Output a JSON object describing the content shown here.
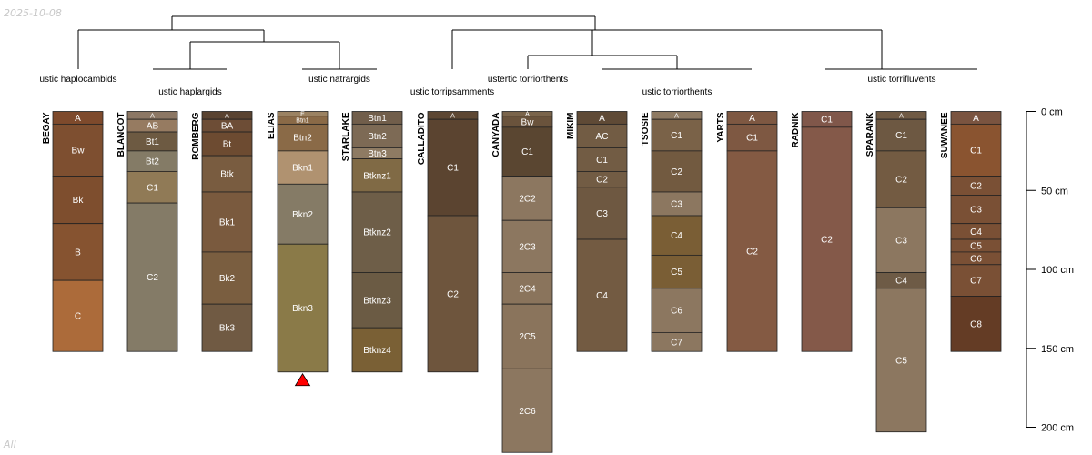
{
  "chart_data": {
    "type": "soil-profile-sketch",
    "stamp_date": "2025-10-08",
    "stamp_label": "All",
    "depth_unit": "cm",
    "depth_axis": {
      "range": [
        0,
        200
      ],
      "ticks": [
        0,
        50,
        100,
        150,
        200
      ]
    },
    "truncation_marker_profile": "ELIAS",
    "groups": [
      {
        "label": "ustic haplocambids"
      },
      {
        "label": "ustic haplargids"
      },
      {
        "label": "ustic natrargids"
      },
      {
        "label": "ustic torripsamments"
      },
      {
        "label": "ustertic torriorthents"
      },
      {
        "label": "ustic torriorthents"
      },
      {
        "label": "ustic torrifluvents"
      }
    ],
    "profiles": [
      {
        "name": "BEGAY",
        "horizons": [
          {
            "name": "A",
            "top": 0,
            "bottom": 8,
            "color": "#7e4a2c"
          },
          {
            "name": "Bw",
            "top": 8,
            "bottom": 41,
            "color": "#7e4f30"
          },
          {
            "name": "Bk",
            "top": 41,
            "bottom": 71,
            "color": "#7e4e2e"
          },
          {
            "name": "B",
            "top": 71,
            "bottom": 107,
            "color": "#865330"
          },
          {
            "name": "C",
            "top": 107,
            "bottom": 152,
            "color": "#ac6b3a"
          }
        ]
      },
      {
        "name": "BLANCOT",
        "horizons": [
          {
            "name": "A",
            "top": 0,
            "bottom": 5,
            "color": "#8c7764"
          },
          {
            "name": "AB",
            "top": 5,
            "bottom": 13,
            "color": "#967b61"
          },
          {
            "name": "Bt1",
            "top": 13,
            "bottom": 25,
            "color": "#6d5a42"
          },
          {
            "name": "Bt2",
            "top": 25,
            "bottom": 38,
            "color": "#847b66"
          },
          {
            "name": "C1",
            "top": 38,
            "bottom": 58,
            "color": "#907a56"
          },
          {
            "name": "C2",
            "top": 58,
            "bottom": 152,
            "color": "#847b67"
          }
        ]
      },
      {
        "name": "ROMBERG",
        "horizons": [
          {
            "name": "A",
            "top": 0,
            "bottom": 5,
            "color": "#5a4331"
          },
          {
            "name": "BA",
            "top": 5,
            "bottom": 13,
            "color": "#6d4d36"
          },
          {
            "name": "Bt",
            "top": 13,
            "bottom": 28,
            "color": "#6d4b31"
          },
          {
            "name": "Btk",
            "top": 28,
            "bottom": 51,
            "color": "#795c40"
          },
          {
            "name": "Bk1",
            "top": 51,
            "bottom": 89,
            "color": "#7a5a3e"
          },
          {
            "name": "Bk2",
            "top": 89,
            "bottom": 122,
            "color": "#7a5e40"
          },
          {
            "name": "Bk3",
            "top": 122,
            "bottom": 152,
            "color": "#705a43"
          }
        ]
      },
      {
        "name": "ELIAS",
        "horizons": [
          {
            "name": "E",
            "top": 0,
            "bottom": 3,
            "color": "#9b8262"
          },
          {
            "name": "Btn1",
            "top": 3,
            "bottom": 8,
            "color": "#8a6a47"
          },
          {
            "name": "Btn2",
            "top": 8,
            "bottom": 25,
            "color": "#8a6a47"
          },
          {
            "name": "Bkn1",
            "top": 25,
            "bottom": 46,
            "color": "#b09270"
          },
          {
            "name": "Bkn2",
            "top": 46,
            "bottom": 84,
            "color": "#857b66"
          },
          {
            "name": "Bkn3",
            "top": 84,
            "bottom": 165,
            "color": "#8a7a48"
          }
        ]
      },
      {
        "name": "STARLAKE",
        "horizons": [
          {
            "name": "Btn1",
            "top": 0,
            "bottom": 8,
            "color": "#715e4b"
          },
          {
            "name": "Btn2",
            "top": 8,
            "bottom": 23,
            "color": "#7d6a55"
          },
          {
            "name": "Btn3",
            "top": 23,
            "bottom": 30,
            "color": "#8e7b63"
          },
          {
            "name": "Btknz1",
            "top": 30,
            "bottom": 51,
            "color": "#806a45"
          },
          {
            "name": "Btknz2",
            "top": 51,
            "bottom": 102,
            "color": "#6e5e48"
          },
          {
            "name": "Btknz3",
            "top": 102,
            "bottom": 137,
            "color": "#6b5b44"
          },
          {
            "name": "Btknz4",
            "top": 137,
            "bottom": 165,
            "color": "#7a6035"
          }
        ]
      },
      {
        "name": "CALLADITO",
        "horizons": [
          {
            "name": "A",
            "top": 0,
            "bottom": 5,
            "color": "#5d4733"
          },
          {
            "name": "C1",
            "top": 5,
            "bottom": 66,
            "color": "#5b4430"
          },
          {
            "name": "C2",
            "top": 66,
            "bottom": 165,
            "color": "#6e553d"
          }
        ]
      },
      {
        "name": "CANYADA",
        "horizons": [
          {
            "name": "A",
            "top": 0,
            "bottom": 3,
            "color": "#7a644b"
          },
          {
            "name": "Bw",
            "top": 3,
            "bottom": 10,
            "color": "#6a533c"
          },
          {
            "name": "C1",
            "top": 10,
            "bottom": 41,
            "color": "#5a4631"
          },
          {
            "name": "2C2",
            "top": 41,
            "bottom": 69,
            "color": "#8c7760"
          },
          {
            "name": "2C3",
            "top": 69,
            "bottom": 102,
            "color": "#8c7760"
          },
          {
            "name": "2C4",
            "top": 102,
            "bottom": 122,
            "color": "#8a745c"
          },
          {
            "name": "2C5",
            "top": 122,
            "bottom": 163,
            "color": "#8a745c"
          },
          {
            "name": "2C6",
            "top": 163,
            "bottom": 216,
            "color": "#8c7760"
          }
        ]
      },
      {
        "name": "MIKIM",
        "horizons": [
          {
            "name": "A",
            "top": 0,
            "bottom": 8,
            "color": "#5f4a36"
          },
          {
            "name": "AC",
            "top": 8,
            "bottom": 23,
            "color": "#725c44"
          },
          {
            "name": "C1",
            "top": 23,
            "bottom": 38,
            "color": "#725c44"
          },
          {
            "name": "C2",
            "top": 38,
            "bottom": 48,
            "color": "#725c44"
          },
          {
            "name": "C3",
            "top": 48,
            "bottom": 81,
            "color": "#6e5841"
          },
          {
            "name": "C4",
            "top": 81,
            "bottom": 152,
            "color": "#735b42"
          }
        ]
      },
      {
        "name": "TSOSIE",
        "horizons": [
          {
            "name": "A",
            "top": 0,
            "bottom": 5,
            "color": "#8e7a63"
          },
          {
            "name": "C1",
            "top": 5,
            "bottom": 25,
            "color": "#7a6248"
          },
          {
            "name": "C2",
            "top": 25,
            "bottom": 51,
            "color": "#725a40"
          },
          {
            "name": "C3",
            "top": 51,
            "bottom": 66,
            "color": "#8c7760"
          },
          {
            "name": "C4",
            "top": 66,
            "bottom": 91,
            "color": "#7a5e35"
          },
          {
            "name": "C5",
            "top": 91,
            "bottom": 112,
            "color": "#7a5e35"
          },
          {
            "name": "C6",
            "top": 112,
            "bottom": 140,
            "color": "#8c7760"
          },
          {
            "name": "C7",
            "top": 140,
            "bottom": 152,
            "color": "#8c7760"
          }
        ]
      },
      {
        "name": "YARTS",
        "horizons": [
          {
            "name": "A",
            "top": 0,
            "bottom": 8,
            "color": "#7e5842"
          },
          {
            "name": "C1",
            "top": 8,
            "bottom": 25,
            "color": "#7e5842"
          },
          {
            "name": "C2",
            "top": 25,
            "bottom": 152,
            "color": "#845a43"
          }
        ]
      },
      {
        "name": "RADNIK",
        "horizons": [
          {
            "name": "C1",
            "top": 0,
            "bottom": 10,
            "color": "#80574a"
          },
          {
            "name": "C2",
            "top": 10,
            "bottom": 152,
            "color": "#845949"
          }
        ]
      },
      {
        "name": "SPARANK",
        "horizons": [
          {
            "name": "A",
            "top": 0,
            "bottom": 5,
            "color": "#705a44"
          },
          {
            "name": "C1",
            "top": 5,
            "bottom": 25,
            "color": "#6d5842"
          },
          {
            "name": "C2",
            "top": 25,
            "bottom": 61,
            "color": "#735b42"
          },
          {
            "name": "C3",
            "top": 61,
            "bottom": 102,
            "color": "#8c7760"
          },
          {
            "name": "C4",
            "top": 102,
            "bottom": 112,
            "color": "#6e5b46"
          },
          {
            "name": "C5",
            "top": 112,
            "bottom": 203,
            "color": "#8c7760"
          }
        ]
      },
      {
        "name": "SUWANEE",
        "horizons": [
          {
            "name": "A",
            "top": 0,
            "bottom": 8,
            "color": "#7a5440"
          },
          {
            "name": "C1",
            "top": 8,
            "bottom": 41,
            "color": "#8a5430"
          },
          {
            "name": "C2",
            "top": 41,
            "bottom": 53,
            "color": "#7a5035"
          },
          {
            "name": "C3",
            "top": 53,
            "bottom": 71,
            "color": "#7a5035"
          },
          {
            "name": "C4",
            "top": 71,
            "bottom": 81,
            "color": "#7a5035"
          },
          {
            "name": "C5",
            "top": 81,
            "bottom": 89,
            "color": "#7a5035"
          },
          {
            "name": "C6",
            "top": 89,
            "bottom": 97,
            "color": "#7a5035"
          },
          {
            "name": "C7",
            "top": 97,
            "bottom": 117,
            "color": "#7a5035"
          },
          {
            "name": "C8",
            "top": 117,
            "bottom": 152,
            "color": "#643c25"
          }
        ]
      }
    ]
  }
}
